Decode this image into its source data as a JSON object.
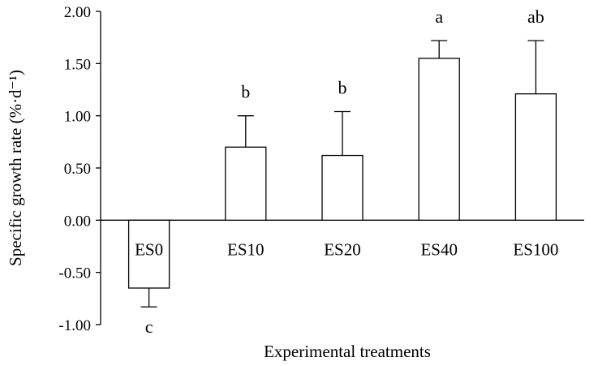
{
  "chart_data": {
    "type": "bar",
    "categories": [
      "ES0",
      "ES10",
      "ES20",
      "ES40",
      "ES100"
    ],
    "values": [
      -0.65,
      0.7,
      0.62,
      1.55,
      1.21
    ],
    "error_upper": [
      0.83,
      1.0,
      1.04,
      1.72,
      1.72
    ],
    "significance": [
      "c",
      "b",
      "b",
      "a",
      "ab"
    ],
    "xlabel": "Experimental treatments",
    "ylabel": "Specific growth rate (%·d⁻¹)",
    "ylim": [
      -1.0,
      2.0
    ],
    "yticks": [
      "2.00",
      "1.50",
      "1.00",
      "0.50",
      "0.00",
      "-0.50",
      "-1.00"
    ],
    "ytick_values": [
      2.0,
      1.5,
      1.0,
      0.5,
      0.0,
      -0.5,
      -1.0
    ],
    "bar_fill": "#ffffff",
    "bar_stroke": "#000000",
    "grid": false,
    "legend": "none"
  }
}
